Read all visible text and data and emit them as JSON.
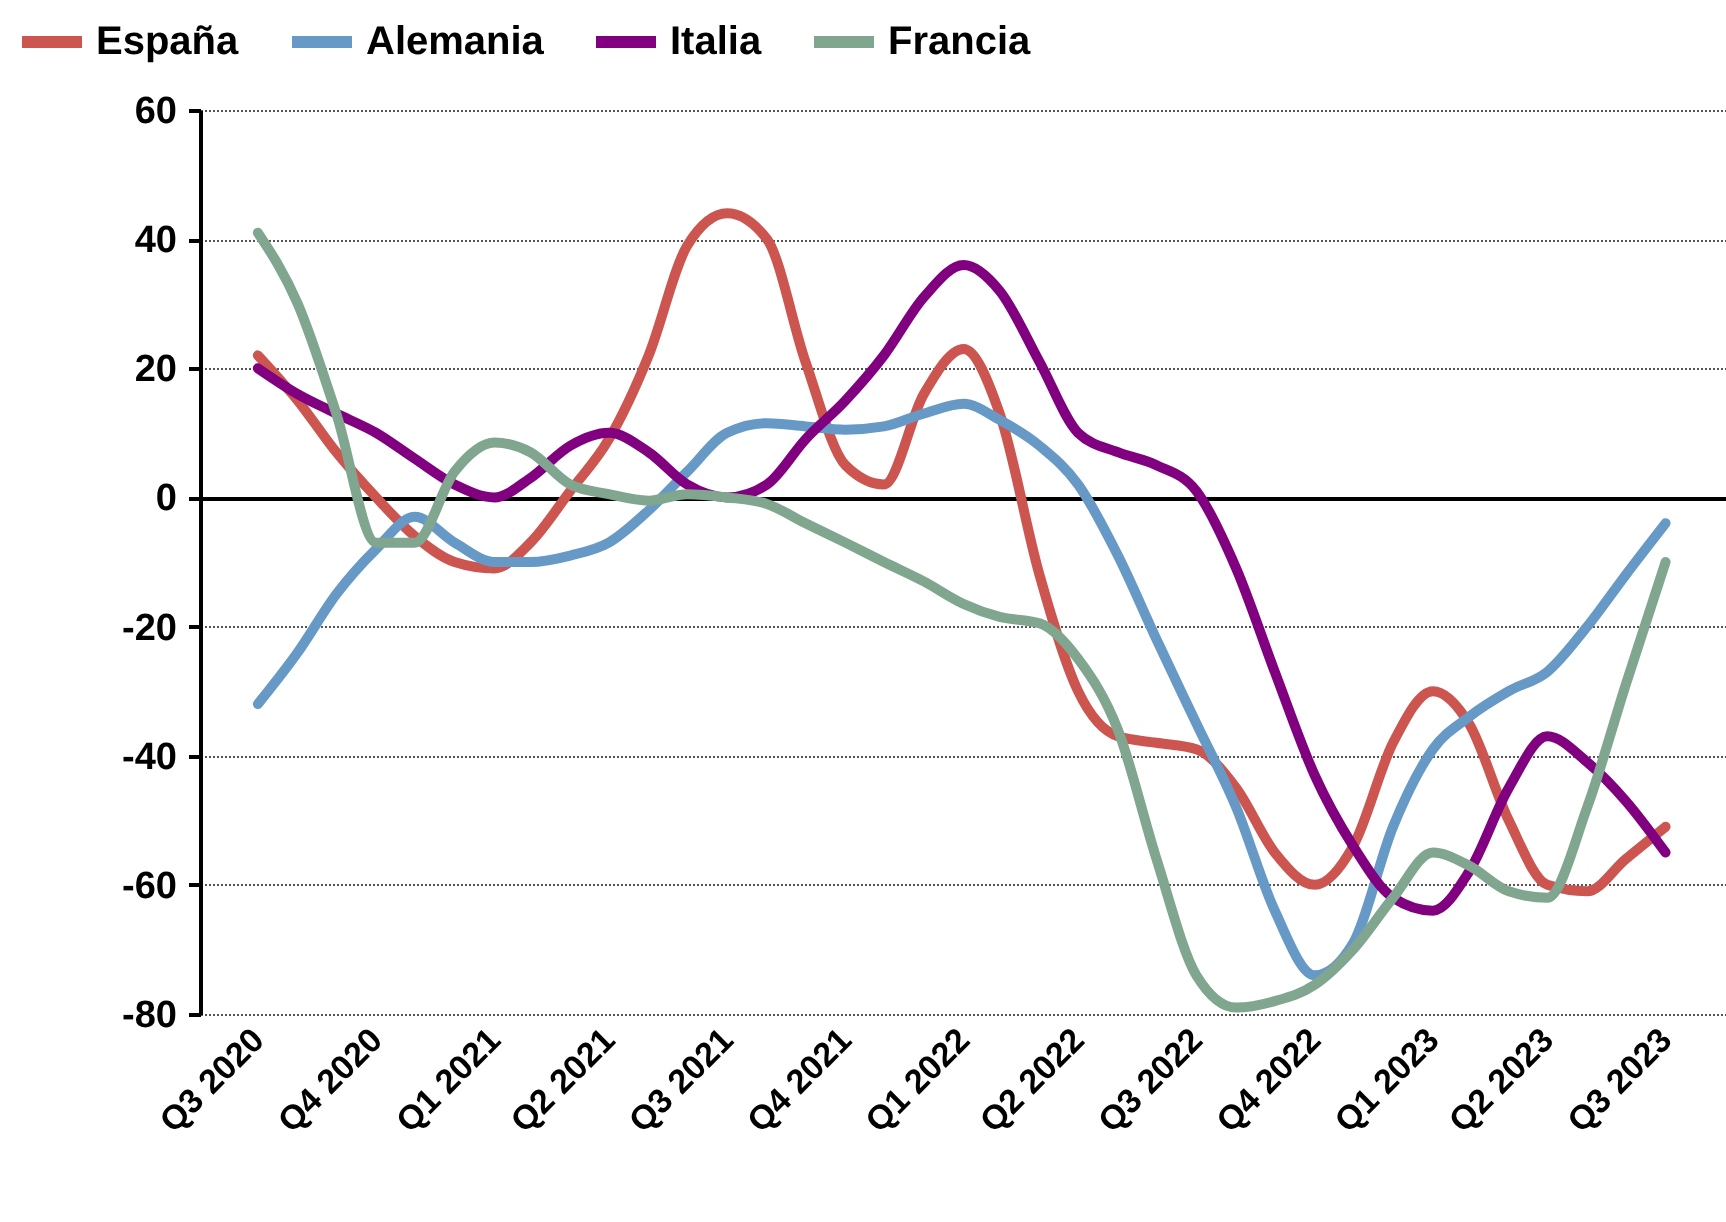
{
  "chart_data": {
    "type": "line",
    "x": [
      "2020-08-15",
      "2020-09-15",
      "2020-10-15",
      "2020-11-15",
      "2020-12-15",
      "2021-01-15",
      "2021-02-15",
      "2021-03-15",
      "2021-04-15",
      "2021-05-15",
      "2021-06-15",
      "2021-07-15",
      "2021-08-15",
      "2021-09-15",
      "2021-10-15",
      "2021-11-15",
      "2021-12-15",
      "2022-01-15",
      "2022-02-15",
      "2022-03-15",
      "2022-04-15",
      "2022-05-15",
      "2022-06-15",
      "2022-07-15",
      "2022-08-15",
      "2022-09-15",
      "2022-10-15",
      "2022-11-15",
      "2022-12-15",
      "2023-01-15",
      "2023-02-15",
      "2023-03-15",
      "2023-04-15",
      "2023-05-15",
      "2023-06-15",
      "2023-07-15",
      "2023-08-15"
    ],
    "series": [
      {
        "name": "España",
        "color": "#cc5550",
        "values": [
          22,
          15,
          7,
          0,
          -6,
          -10,
          -11,
          -7,
          1,
          9,
          22,
          39,
          44,
          40,
          21,
          5,
          2,
          16,
          23,
          13,
          -12,
          -30,
          -37,
          -38,
          -39,
          -45,
          -55,
          -60,
          -54,
          -38,
          -30,
          -35,
          -50,
          -60,
          -61,
          -56,
          -51
        ]
      },
      {
        "name": "Alemania",
        "color": "#6699c6",
        "values": [
          -32,
          -24,
          -15,
          -8,
          -3,
          -7,
          -10,
          -10,
          -9,
          -7,
          -2,
          4,
          10,
          11.5,
          11,
          10.5,
          11,
          13,
          14.5,
          12,
          8,
          2,
          -9,
          -22,
          -35,
          -48,
          -64,
          -74,
          -69,
          -51,
          -39,
          -34,
          -30,
          -27,
          -20,
          -12,
          -4
        ]
      },
      {
        "name": "Italia",
        "color": "#800080",
        "values": [
          20,
          16,
          13,
          10,
          6,
          2,
          0,
          3,
          8,
          10,
          7,
          2,
          0,
          2,
          9,
          15,
          22,
          31,
          36,
          32,
          21,
          10,
          7,
          5,
          1,
          -11,
          -27,
          -43,
          -54,
          -62,
          -64,
          -58,
          -45,
          -37,
          -41,
          -47,
          -55
        ]
      },
      {
        "name": "Francia",
        "color": "#80a690",
        "values": [
          41,
          30,
          13,
          -7,
          -7,
          4,
          8.5,
          7,
          2,
          0.5,
          -0.5,
          0.5,
          0,
          -1,
          -4,
          -7,
          -10,
          -13,
          -16.5,
          -18.5,
          -19.5,
          -25,
          -36,
          -56,
          -74,
          -79,
          -78,
          -75.5,
          -70,
          -62,
          -55,
          -57,
          -61,
          -62,
          -48,
          -29,
          -10
        ]
      }
    ],
    "xlim": [
      "2020-07-01",
      "2023-10-01"
    ],
    "xticks": [
      {
        "value": "2020-08-15",
        "label": "Q3 2020"
      },
      {
        "value": "2020-11-15",
        "label": "Q4 2020"
      },
      {
        "value": "2021-02-15",
        "label": "Q1 2021"
      },
      {
        "value": "2021-05-15",
        "label": "Q2 2021"
      },
      {
        "value": "2021-08-15",
        "label": "Q3 2021"
      },
      {
        "value": "2021-11-15",
        "label": "Q4 2021"
      },
      {
        "value": "2022-02-15",
        "label": "Q1 2022"
      },
      {
        "value": "2022-05-15",
        "label": "Q2 2022"
      },
      {
        "value": "2022-08-15",
        "label": "Q3 2022"
      },
      {
        "value": "2022-11-15",
        "label": "Q4 2022"
      },
      {
        "value": "2023-02-15",
        "label": "Q1 2023"
      },
      {
        "value": "2023-05-15",
        "label": "Q2 2023"
      },
      {
        "value": "2023-08-15",
        "label": "Q3 2023"
      }
    ],
    "ylim": [
      -80,
      60
    ],
    "yticks": [
      -80,
      -60,
      -40,
      -20,
      0,
      20,
      40,
      60
    ],
    "grid": "y",
    "legend": "top",
    "marker": "none",
    "line_style": "solid"
  }
}
